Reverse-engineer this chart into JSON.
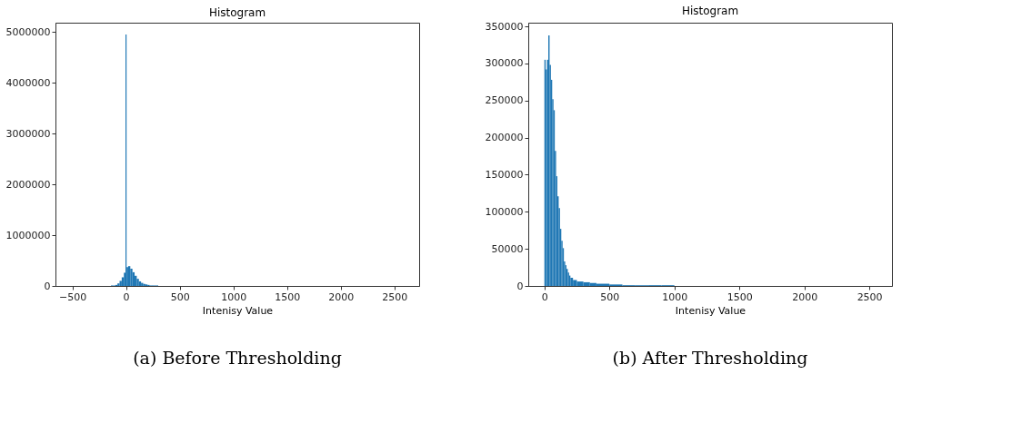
{
  "chart_data": [
    {
      "type": "histogram",
      "title": "Histogram",
      "xlabel": "Intenisy Value",
      "annotations": [
        "(a) Before Thresholding"
      ],
      "bins": [
        -140,
        -120,
        -100,
        -80,
        -60,
        -40,
        -20,
        -5,
        5,
        20,
        40,
        60,
        80,
        100,
        120,
        140,
        160,
        180,
        200,
        220,
        240,
        260,
        280,
        300
      ],
      "values": [
        10000,
        10000,
        20000,
        50000,
        100000,
        170000,
        260000,
        4950000,
        370000,
        390000,
        340000,
        270000,
        200000,
        140000,
        90000,
        60000,
        40000,
        30000,
        20000,
        10000,
        10000,
        10000,
        10000
      ],
      "color": "#1f77b4",
      "xlim": [
        -657,
        2730
      ],
      "xticks": [
        -500,
        0,
        500,
        1000,
        1500,
        2000,
        2500
      ],
      "ylim": [
        0,
        5180000
      ],
      "yticks": [
        0,
        1000000,
        2000000,
        3000000,
        4000000,
        5000000
      ],
      "grid": false
    },
    {
      "type": "histogram",
      "title": "Histogram",
      "xlabel": "Intenisy Value",
      "annotations": [
        "(b) After Thresholding"
      ],
      "bins": [
        0,
        10,
        20,
        30,
        40,
        50,
        60,
        70,
        80,
        90,
        100,
        110,
        120,
        130,
        140,
        150,
        160,
        170,
        180,
        190,
        200,
        220,
        250,
        300,
        350,
        400,
        500,
        600,
        700,
        800,
        900,
        1000
      ],
      "values": [
        305000,
        292000,
        305000,
        338000,
        298000,
        278000,
        252000,
        237000,
        182000,
        148000,
        121000,
        105000,
        77000,
        61000,
        51000,
        33000,
        28000,
        23000,
        18000,
        14000,
        11000,
        8000,
        6000,
        5000,
        4000,
        3000,
        2000,
        1000,
        1000,
        1000,
        1000
      ],
      "color": "#1f77b4",
      "xlim": [
        -124,
        2674
      ],
      "xticks": [
        0,
        500,
        1000,
        1500,
        2000,
        2500
      ],
      "ylim": [
        0,
        355000
      ],
      "yticks": [
        0,
        50000,
        100000,
        150000,
        200000,
        250000,
        300000,
        350000
      ],
      "grid": false
    }
  ]
}
